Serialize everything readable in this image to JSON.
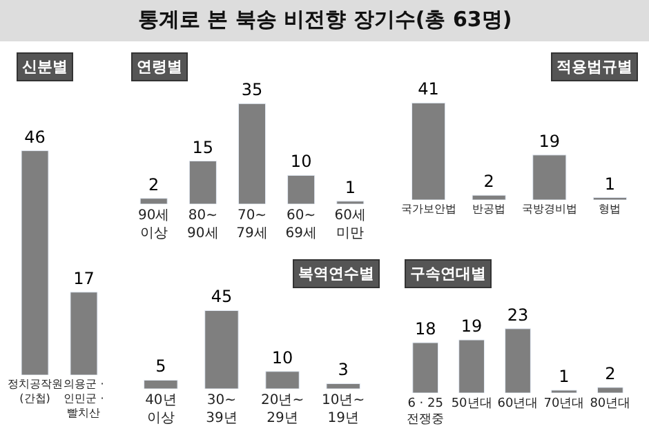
{
  "chart_data": [
    {
      "type": "bar",
      "title": "신분별",
      "annotations": [
        "통계로 본 북송 비전향 장기수(총 63명)"
      ],
      "categories": [
        "정치공작원\n(간첩)",
        "의용군 ·\n인민군 ·\n빨치산"
      ],
      "values": [
        46,
        17
      ],
      "color": "#7f7f7f",
      "data_labels": true
    },
    {
      "type": "bar",
      "title": "연령별",
      "categories": [
        "90세\n이상",
        "80~\n90세",
        "70~\n79세",
        "60~\n69세",
        "60세\n미만"
      ],
      "values": [
        2,
        15,
        35,
        10,
        1
      ],
      "color": "#7f7f7f",
      "data_labels": true
    },
    {
      "type": "bar",
      "title": "적용법규별",
      "categories": [
        "국가보안법",
        "반공법",
        "국방경비법",
        "형법"
      ],
      "values": [
        41,
        2,
        19,
        1
      ],
      "color": "#7f7f7f",
      "data_labels": true
    },
    {
      "type": "bar",
      "title": "복역연수별",
      "categories": [
        "40년\n이상",
        "30~\n39년",
        "20년~\n29년",
        "10년~\n19년"
      ],
      "values": [
        5,
        45,
        10,
        3
      ],
      "color": "#7f7f7f",
      "data_labels": true
    },
    {
      "type": "bar",
      "title": "구속연대별",
      "categories": [
        "6 · 25\n전쟁중",
        "50년대",
        "60년대",
        "70년대",
        "80년대"
      ],
      "values": [
        18,
        19,
        23,
        1,
        2
      ],
      "color": "#7f7f7f",
      "data_labels": true
    }
  ]
}
